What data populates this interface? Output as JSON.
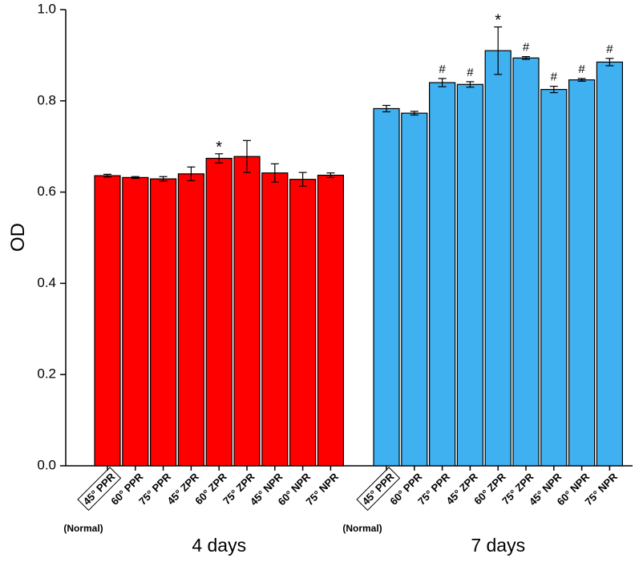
{
  "chart_data": {
    "type": "bar",
    "y_label": "OD",
    "categories": [
      "45° PPR",
      "60° PPR",
      "75° PPR",
      "45° ZPR",
      "60° ZPR",
      "75° ZPR",
      "45° NPR",
      "60° NPR",
      "75° NPR"
    ],
    "series": [
      {
        "name": "4 days",
        "color": "#ff0000",
        "note": "(Normal)",
        "values": [
          0.636,
          0.632,
          0.629,
          0.64,
          0.674,
          0.678,
          0.642,
          0.628,
          0.637
        ],
        "errors": [
          0.003,
          0.002,
          0.005,
          0.015,
          0.01,
          0.035,
          0.02,
          0.015,
          0.005
        ],
        "markers": [
          null,
          null,
          null,
          null,
          "*",
          null,
          null,
          null,
          null
        ]
      },
      {
        "name": "7 days",
        "color": "#3fb0f0",
        "note": "(Normal)",
        "values": [
          0.783,
          0.773,
          0.84,
          0.836,
          0.91,
          0.894,
          0.825,
          0.846,
          0.885
        ],
        "errors": [
          0.007,
          0.004,
          0.009,
          0.006,
          0.052,
          0.003,
          0.007,
          0.003,
          0.008
        ],
        "markers": [
          null,
          null,
          "#",
          "#",
          "*",
          "#",
          "#",
          "#",
          "#"
        ]
      }
    ],
    "ylim": [
      0,
      1
    ],
    "yticks": [
      {
        "value": 0,
        "label": "0.0"
      },
      0.2,
      0.4,
      0.6,
      0.8,
      {
        "value": 1,
        "label": "1.0"
      }
    ]
  }
}
